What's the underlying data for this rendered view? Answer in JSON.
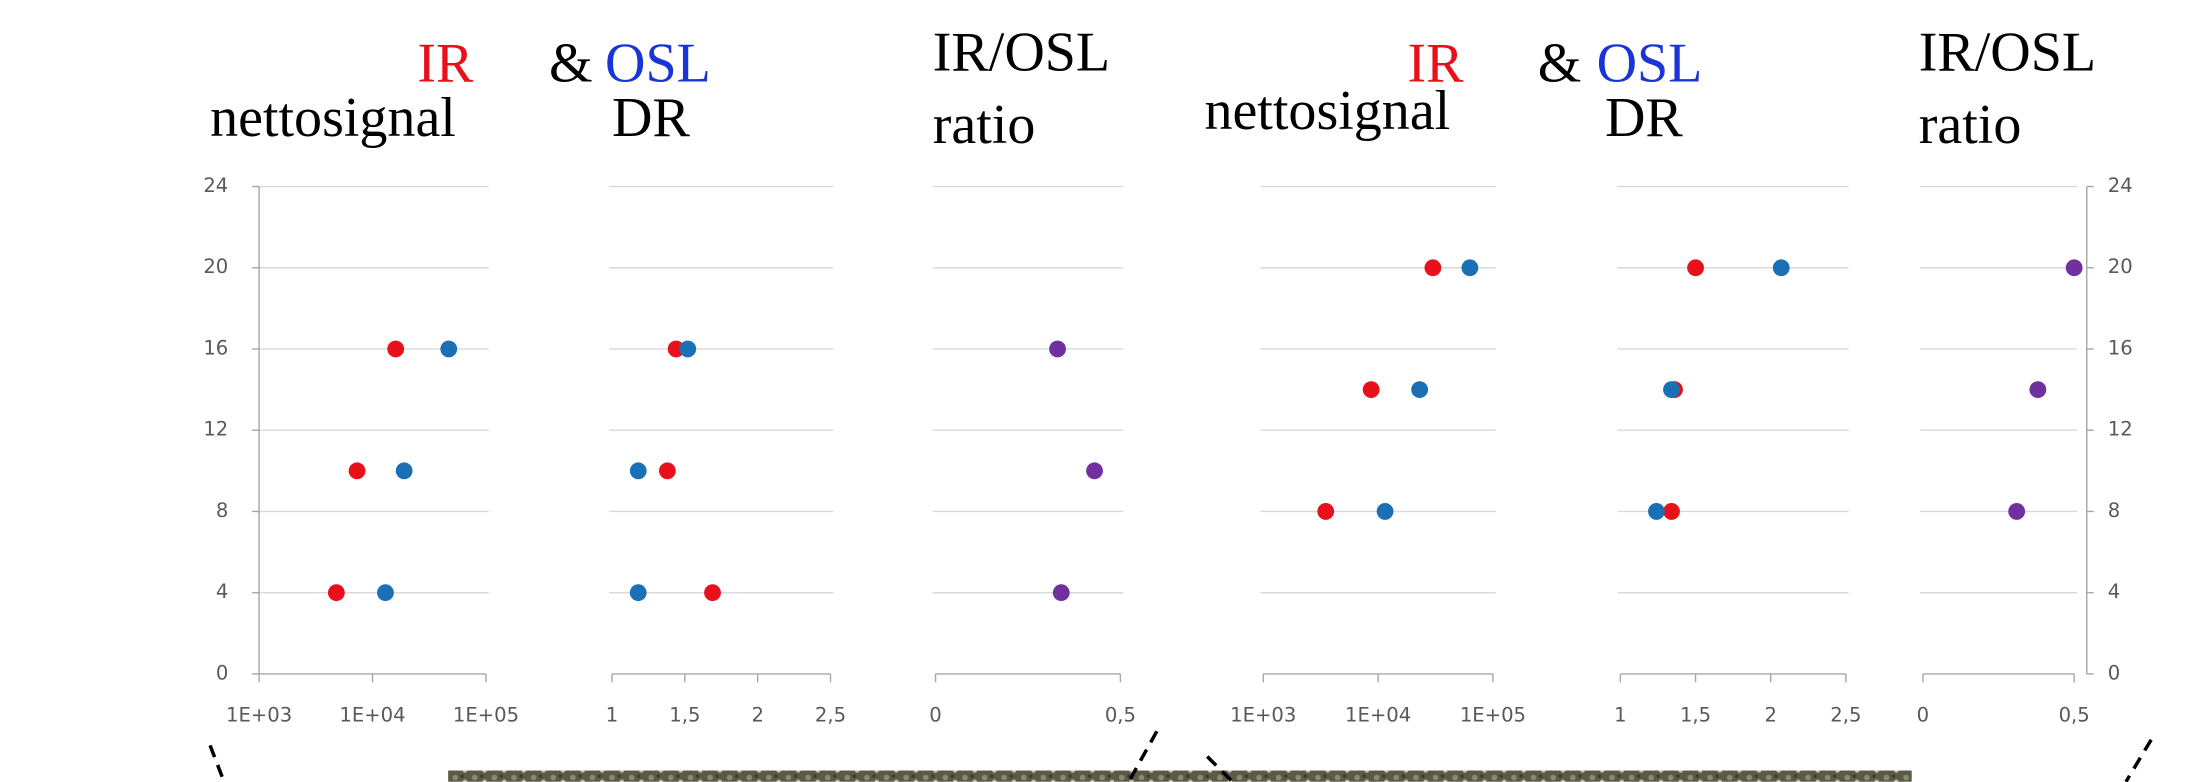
{
  "groups": [
    {
      "heading": [
        "IR",
        "&",
        "OSL"
      ],
      "heading_colors": [
        "#e8101a",
        "#000000",
        "#1a35d6"
      ]
    },
    {
      "heading": [
        "IR",
        "&",
        "OSL"
      ],
      "heading_colors": [
        "#e8101a",
        "#000000",
        "#1a35d6"
      ]
    }
  ],
  "chart_data": [
    {
      "type": "scatter",
      "title_lines": [
        "nettosignal"
      ],
      "xlog": true,
      "xlim": [
        1000,
        100000
      ],
      "xticks": [
        {
          "value": 1000,
          "label": "1E+03"
        },
        {
          "value": 10000,
          "label": "1E+04"
        },
        {
          "value": 100000,
          "label": "1E+05"
        }
      ],
      "ylim": [
        0,
        24
      ],
      "yticks": [
        0,
        4,
        8,
        12,
        16,
        20,
        24
      ],
      "yaxis": "left",
      "grid": true,
      "series": [
        {
          "color": "#e8101a",
          "x": [
            16000,
            7300,
            4800
          ],
          "values": [
            16,
            10,
            4
          ]
        },
        {
          "color": "#1a6fb5",
          "x": [
            47000,
            19000,
            13000
          ],
          "values": [
            16,
            10,
            4
          ]
        }
      ]
    },
    {
      "type": "scatter",
      "title_lines": [
        "DR"
      ],
      "xlog": false,
      "xlim": [
        1,
        2.5
      ],
      "xticks": [
        1,
        {
          "value": 1.5,
          "label": "1,5"
        },
        2,
        {
          "value": 2.5,
          "label": "2,5"
        }
      ],
      "ylim": [
        0,
        24
      ],
      "yticks": [
        0,
        4,
        8,
        12,
        16,
        20,
        24
      ],
      "yaxis": "none",
      "grid": true,
      "series": [
        {
          "color": "#e8101a",
          "x": [
            1.44,
            1.38,
            1.69
          ],
          "values": [
            16,
            10,
            4
          ]
        },
        {
          "color": "#1a6fb5",
          "x": [
            1.52,
            1.18,
            1.18
          ],
          "values": [
            16,
            10,
            4
          ]
        }
      ]
    },
    {
      "type": "scatter",
      "title_lines": [
        "IR/OSL",
        "ratio"
      ],
      "xlog": false,
      "xlim": [
        0,
        0.5
      ],
      "xticks": [
        0,
        {
          "value": 0.5,
          "label": "0,5"
        }
      ],
      "ylim": [
        0,
        24
      ],
      "yticks": [
        0,
        4,
        8,
        12,
        16,
        20,
        24
      ],
      "yaxis": "none",
      "grid": true,
      "series": [
        {
          "color": "#7030a0",
          "x": [
            0.33,
            0.43,
            0.34
          ],
          "values": [
            16,
            10,
            4
          ]
        }
      ]
    },
    {
      "type": "scatter",
      "title_lines": [
        "nettosignal"
      ],
      "xlog": true,
      "xlim": [
        1000,
        100000
      ],
      "xticks": [
        {
          "value": 1000,
          "label": "1E+03"
        },
        {
          "value": 10000,
          "label": "1E+04"
        },
        {
          "value": 100000,
          "label": "1E+05"
        }
      ],
      "ylim": [
        0,
        24
      ],
      "yticks": [
        0,
        4,
        8,
        12,
        16,
        20,
        24
      ],
      "yaxis": "none",
      "grid": true,
      "series": [
        {
          "color": "#e8101a",
          "x": [
            30000,
            8700,
            3500
          ],
          "values": [
            20,
            14,
            8
          ]
        },
        {
          "color": "#1a6fb5",
          "x": [
            63000,
            23000,
            11500
          ],
          "values": [
            20,
            14,
            8
          ]
        }
      ]
    },
    {
      "type": "scatter",
      "title_lines": [
        "DR"
      ],
      "xlog": false,
      "xlim": [
        1,
        2.5
      ],
      "xticks": [
        1,
        {
          "value": 1.5,
          "label": "1,5"
        },
        2,
        {
          "value": 2.5,
          "label": "2,5"
        }
      ],
      "ylim": [
        0,
        24
      ],
      "yticks": [
        0,
        4,
        8,
        12,
        16,
        20,
        24
      ],
      "yaxis": "none",
      "grid": true,
      "series": [
        {
          "color": "#e8101a",
          "x": [
            1.5,
            1.36,
            1.34
          ],
          "values": [
            20,
            14,
            8
          ]
        },
        {
          "color": "#1a6fb5",
          "x": [
            2.07,
            1.34,
            1.24
          ],
          "values": [
            20,
            14,
            8
          ]
        }
      ]
    },
    {
      "type": "scatter",
      "title_lines": [
        "IR/OSL",
        "ratio"
      ],
      "xlog": false,
      "xlim": [
        0,
        0.5
      ],
      "xticks": [
        0,
        {
          "value": 0.5,
          "label": "0,5"
        }
      ],
      "ylim": [
        0,
        24
      ],
      "yticks": [
        0,
        4,
        8,
        12,
        16,
        20,
        24
      ],
      "yaxis": "right",
      "grid": true,
      "series": [
        {
          "color": "#7030a0",
          "x": [
            0.5,
            0.38,
            0.31
          ],
          "values": [
            20,
            14,
            8
          ]
        }
      ]
    }
  ]
}
